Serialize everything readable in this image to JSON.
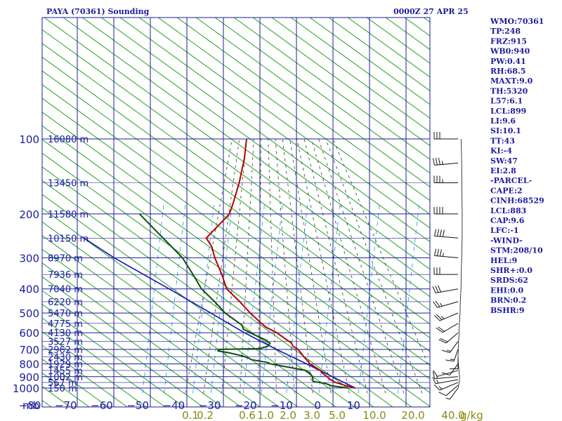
{
  "header": {
    "station": "PAYA (70361) Sounding",
    "time": "0000Z 27 APR 25"
  },
  "indices": [
    "WMO:70361",
    "TP:248",
    "FRZ:915",
    "WB0:940",
    "PW:0.41",
    "RH:68.5",
    "MAXT:9.0",
    "TH:5320",
    "L57:6.1",
    "LCL:899",
    "LI:9.6",
    "SI:10.1",
    "TT:43",
    "KI:-4",
    "SW:47",
    "EI:2.8",
    "-PARCEL-",
    "CAPE:2",
    "CINH:68529",
    "LCL:883",
    "CAP:9.6",
    "LFC:-1",
    "-WIND-",
    "STM:208/10",
    "HEL:9",
    "SHR+:0.0",
    "SRDS:62",
    "EHI:0.0",
    "BRN:0.2",
    "BSHR:9"
  ],
  "colors": {
    "grid": "#1c1c9c",
    "dry_adiabat": "#21a121",
    "moist_adiabat": "#3a3a3a",
    "mixing_ratio": "#1e90ff",
    "temperature": "#b30000",
    "dewpoint": "#0b4f0b",
    "parcel": "#1414b4",
    "wind_barb": "#111111"
  },
  "chart_data": {
    "type": "skew-t",
    "ylabel_units": "mb",
    "xlabel_units": "g/kg",
    "pressure_levels": [
      100,
      200,
      300,
      400,
      500,
      600,
      700,
      800,
      900,
      1000
    ],
    "pressure_labels": [
      "100",
      "200",
      "300",
      "400",
      "500",
      "600",
      "700",
      "800",
      "900",
      "1000"
    ],
    "height_labels": [
      {
        "p": 100,
        "label": "16080 m"
      },
      {
        "p": 150,
        "label": "13450 m"
      },
      {
        "p": 200,
        "label": "11580 m"
      },
      {
        "p": 250,
        "label": "10150 m"
      },
      {
        "p": 300,
        "label": "8970 m"
      },
      {
        "p": 350,
        "label": "7936 m"
      },
      {
        "p": 400,
        "label": "7040 m"
      },
      {
        "p": 450,
        "label": "6220 m"
      },
      {
        "p": 500,
        "label": "5470 m"
      },
      {
        "p": 550,
        "label": "4775 m"
      },
      {
        "p": 600,
        "label": "4130 m"
      },
      {
        "p": 650,
        "label": "3527 m"
      },
      {
        "p": 700,
        "label": "2962 m"
      },
      {
        "p": 750,
        "label": "2430 m"
      },
      {
        "p": 800,
        "label": "1929 m"
      },
      {
        "p": 850,
        "label": "1455 m"
      },
      {
        "p": 900,
        "label": "1002 m"
      },
      {
        "p": 950,
        "label": "567 m"
      },
      {
        "p": 1000,
        "label": "150 m"
      }
    ],
    "temperature_ticks": [
      -80,
      -70,
      -60,
      -50,
      -40,
      -30,
      -20,
      -10,
      0,
      10
    ],
    "temperature_tick_labels": [
      "−80",
      "−70",
      "−60",
      "−50",
      "−40",
      "−30",
      "−20",
      "−10",
      "0",
      "10"
    ],
    "mixing_ratio_ticks": [
      0.1,
      0.2,
      0.6,
      1.0,
      2.0,
      3.0,
      5.0,
      10.0,
      20.0,
      40.0
    ],
    "mixing_ratio_labels": [
      "0.1",
      "0.2",
      "0.6",
      "1.0",
      "2.0",
      "3.0",
      "5.0",
      "10.0",
      "20.0",
      "40.0"
    ],
    "temperature": [
      {
        "p": 1000,
        "t": 7
      },
      {
        "p": 975,
        "t": 3.5
      },
      {
        "p": 950,
        "t": 0.5
      },
      {
        "p": 925,
        "t": -1.5
      },
      {
        "p": 900,
        "t": -3
      },
      {
        "p": 870,
        "t": -5
      },
      {
        "p": 850,
        "t": -6
      },
      {
        "p": 800,
        "t": -10
      },
      {
        "p": 750,
        "t": -13
      },
      {
        "p": 700,
        "t": -16
      },
      {
        "p": 680,
        "t": -18
      },
      {
        "p": 660,
        "t": -19
      },
      {
        "p": 640,
        "t": -21
      },
      {
        "p": 600,
        "t": -25
      },
      {
        "p": 570,
        "t": -29
      },
      {
        "p": 550,
        "t": -31
      },
      {
        "p": 500,
        "t": -36
      },
      {
        "p": 450,
        "t": -41
      },
      {
        "p": 400,
        "t": -47
      },
      {
        "p": 350,
        "t": -51
      },
      {
        "p": 300,
        "t": -56
      },
      {
        "p": 270,
        "t": -59
      },
      {
        "p": 250,
        "t": -62
      },
      {
        "p": 200,
        "t": -60
      },
      {
        "p": 180,
        "t": -61
      },
      {
        "p": 150,
        "t": -63
      },
      {
        "p": 120,
        "t": -66
      },
      {
        "p": 100,
        "t": -69
      }
    ],
    "dewpoint": [
      {
        "p": 1000,
        "t": 5
      },
      {
        "p": 980,
        "t": 0
      },
      {
        "p": 960,
        "t": -2
      },
      {
        "p": 940,
        "t": -6
      },
      {
        "p": 900,
        "t": -7
      },
      {
        "p": 870,
        "t": -8.5
      },
      {
        "p": 850,
        "t": -10
      },
      {
        "p": 800,
        "t": -21
      },
      {
        "p": 790,
        "t": -22
      },
      {
        "p": 770,
        "t": -27
      },
      {
        "p": 760,
        "t": -28
      },
      {
        "p": 745,
        "t": -30
      },
      {
        "p": 720,
        "t": -35
      },
      {
        "p": 710,
        "t": -38
      },
      {
        "p": 700,
        "t": -38
      },
      {
        "p": 695,
        "t": -27
      },
      {
        "p": 680,
        "t": -25
      },
      {
        "p": 660,
        "t": -25
      },
      {
        "p": 640,
        "t": -27
      },
      {
        "p": 610,
        "t": -31
      },
      {
        "p": 580,
        "t": -35
      },
      {
        "p": 560,
        "t": -36
      },
      {
        "p": 500,
        "t": -43
      },
      {
        "p": 450,
        "t": -48
      },
      {
        "p": 400,
        "t": -54
      },
      {
        "p": 350,
        "t": -59
      },
      {
        "p": 300,
        "t": -65
      },
      {
        "p": 250,
        "t": -74
      },
      {
        "p": 200,
        "t": -85
      }
    ],
    "parcel": [
      {
        "p": 1000,
        "t": 7
      },
      {
        "p": 900,
        "t": -1.5
      },
      {
        "p": 800,
        "t": -11
      },
      {
        "p": 700,
        "t": -22
      },
      {
        "p": 600,
        "t": -34
      },
      {
        "p": 500,
        "t": -47
      },
      {
        "p": 400,
        "t": -63
      },
      {
        "p": 300,
        "t": -84
      },
      {
        "p": 250,
        "t": -96
      }
    ],
    "winds": [
      {
        "p": 1000,
        "dir": 200,
        "spd": 5
      },
      {
        "p": 975,
        "dir": 210,
        "spd": 10
      },
      {
        "p": 950,
        "dir": 230,
        "spd": 15
      },
      {
        "p": 925,
        "dir": 250,
        "spd": 15
      },
      {
        "p": 900,
        "dir": 260,
        "spd": 15
      },
      {
        "p": 850,
        "dir": 240,
        "spd": 10
      },
      {
        "p": 800,
        "dir": 200,
        "spd": 10
      },
      {
        "p": 750,
        "dir": 180,
        "spd": 10
      },
      {
        "p": 700,
        "dir": 190,
        "spd": 15
      },
      {
        "p": 650,
        "dir": 200,
        "spd": 15
      },
      {
        "p": 600,
        "dir": 210,
        "spd": 20
      },
      {
        "p": 550,
        "dir": 220,
        "spd": 20
      },
      {
        "p": 500,
        "dir": 230,
        "spd": 25
      },
      {
        "p": 450,
        "dir": 240,
        "spd": 25
      },
      {
        "p": 400,
        "dir": 250,
        "spd": 30
      },
      {
        "p": 350,
        "dir": 270,
        "spd": 30
      },
      {
        "p": 300,
        "dir": 280,
        "spd": 35
      },
      {
        "p": 250,
        "dir": 280,
        "spd": 40
      },
      {
        "p": 200,
        "dir": 270,
        "spd": 40
      },
      {
        "p": 150,
        "dir": 270,
        "spd": 35
      },
      {
        "p": 125,
        "dir": 260,
        "spd": 35
      },
      {
        "p": 100,
        "dir": 270,
        "spd": 30
      }
    ]
  }
}
